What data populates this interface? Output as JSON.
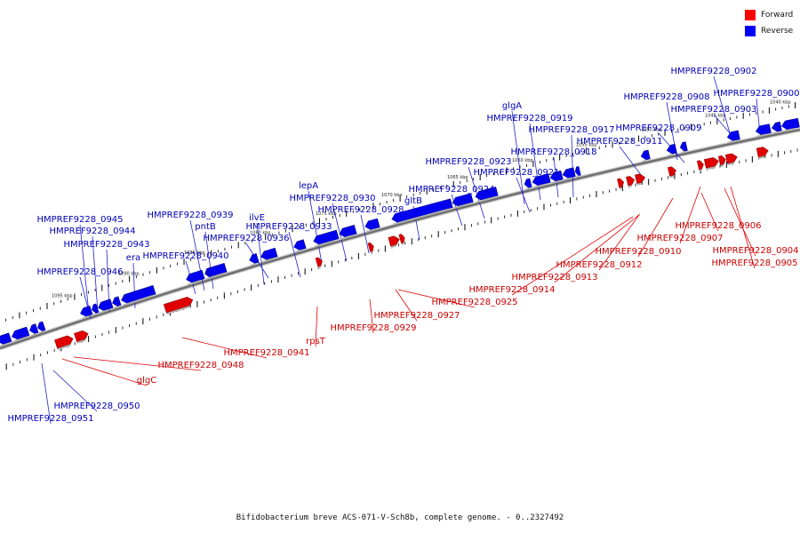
{
  "colors": {
    "forward": "#e00000",
    "reverse": "#0000ee",
    "backbone": "#6e6e6e"
  },
  "legend": [
    {
      "label": "Forward",
      "color": "#ff0000"
    },
    {
      "label": "Reverse",
      "color": "#0000ff"
    }
  ],
  "caption": "Bifidobacterium breve ACS-071-V-Sch8b, complete genome. - 0..2327492",
  "kbp_ticks": [
    "1040 kbp",
    "1045 kbp",
    "1050 kbp",
    "1055 kbp",
    "1060 kbp",
    "1065 kbp",
    "1070 kbp",
    "1075 kbp",
    "1080 kbp",
    "1085 kbp",
    "1090 kbp",
    "1095 kbp"
  ],
  "reverse_labels": [
    "HMPREF9228_0902",
    "HMPREF9228_0908",
    "HMPREF9228_0900",
    "HMPREF9228_0903",
    "HMPREF9228_0909",
    "HMPREF9228_0911",
    "glgA",
    "HMPREF9228_0919",
    "HMPREF9228_0917",
    "HMPREF9228_0918",
    "HMPREF9228_0923",
    "HMPREF9228_0921",
    "HMPREF9228_0924",
    "lepA",
    "HMPREF9228_0930",
    "HMPREF9228_0928",
    "gltB",
    "HMPREF9228_0939",
    "pntB",
    "ilvE",
    "HMPREF9228_0933",
    "HMPREF9228_0936",
    "HMPREF9228_0940",
    "HMPREF9228_0945",
    "HMPREF9228_0944",
    "HMPREF9228_0943",
    "era",
    "HMPREF9228_0946",
    "HMPREF9228_0950",
    "HMPREF9228_0951"
  ],
  "forward_labels": [
    "HMPREF9228_0906",
    "HMPREF9228_0907",
    "HMPREF9228_0904",
    "HMPREF9228_0910",
    "HMPREF9228_0905",
    "HMPREF9228_0912",
    "HMPREF9228_0913",
    "HMPREF9228_0914",
    "HMPREF9228_0925",
    "HMPREF9228_0927",
    "HMPREF9228_0929",
    "rpsT",
    "HMPREF9228_0941",
    "HMPREF9228_0948",
    "glgC"
  ]
}
